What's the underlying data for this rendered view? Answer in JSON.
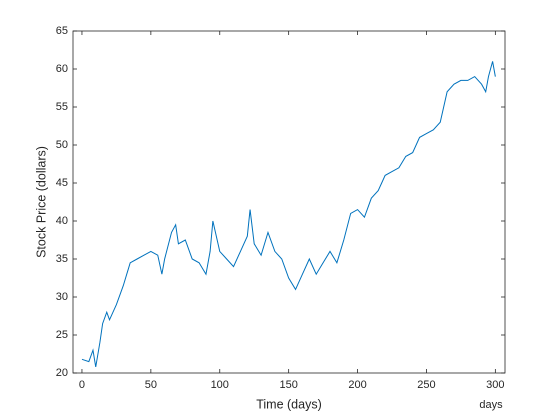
{
  "chart_data": {
    "type": "line",
    "xlabel": "Time (days)",
    "ylabel": "Stock Price (dollars)",
    "x_unit_label": "days",
    "x": [
      0,
      5,
      8,
      10,
      13,
      15,
      18,
      20,
      25,
      30,
      35,
      40,
      45,
      50,
      55,
      58,
      60,
      65,
      68,
      70,
      75,
      80,
      85,
      90,
      93,
      95,
      100,
      105,
      110,
      115,
      120,
      122,
      125,
      130,
      135,
      140,
      145,
      150,
      155,
      160,
      165,
      170,
      175,
      180,
      185,
      190,
      195,
      200,
      205,
      210,
      215,
      220,
      225,
      230,
      235,
      240,
      245,
      250,
      255,
      260,
      265,
      270,
      275,
      280,
      285,
      290,
      293,
      295,
      298,
      300
    ],
    "series": [
      {
        "color": "#0072bd",
        "values": [
          21.8,
          21.5,
          23,
          20.8,
          24,
          26.5,
          28,
          27,
          29,
          31.5,
          34.5,
          35,
          35.5,
          36,
          35.5,
          33,
          35,
          38.5,
          39.5,
          37,
          37.5,
          35,
          34.5,
          33,
          36,
          40,
          36,
          35,
          34,
          36,
          38,
          41.5,
          37,
          35.5,
          38.5,
          36,
          35,
          32.5,
          31,
          33,
          35,
          33,
          34.5,
          36,
          34.5,
          37.5,
          41,
          41.5,
          40.5,
          43,
          44,
          46,
          46.5,
          47,
          48.5,
          49,
          51,
          51.5,
          52,
          53,
          57,
          58,
          58.5,
          58.5,
          59,
          58,
          57,
          59,
          61,
          59
        ]
      }
    ],
    "xlim": [
      -6.5,
      307
    ],
    "xticks": [
      0,
      50,
      100,
      150,
      200,
      250,
      300
    ],
    "ylim": [
      20,
      65
    ],
    "yticks": [
      20,
      25,
      30,
      35,
      40,
      45,
      50,
      55,
      60,
      65
    ]
  }
}
